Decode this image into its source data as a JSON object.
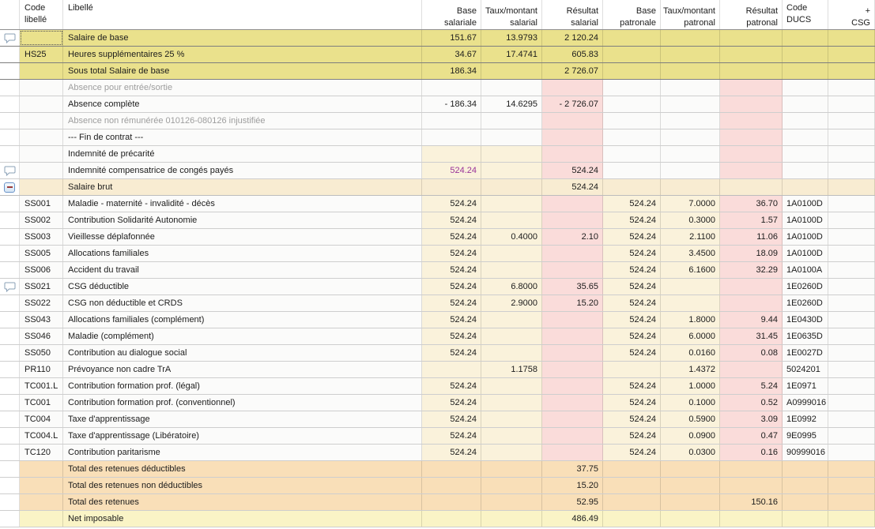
{
  "table": {
    "columns": [
      {
        "key": "icon",
        "lines": [],
        "align": "left"
      },
      {
        "key": "code",
        "lines": [
          "Code",
          "libellé"
        ],
        "align": "left"
      },
      {
        "key": "libelle",
        "lines": [
          "Libellé"
        ],
        "align": "left"
      },
      {
        "key": "base_sal",
        "lines": [
          "Base",
          "salariale"
        ],
        "align": "right"
      },
      {
        "key": "taux_sal",
        "lines": [
          "Taux/montant",
          "salarial"
        ],
        "align": "right"
      },
      {
        "key": "res_sal",
        "lines": [
          "Résultat",
          "salarial"
        ],
        "align": "right"
      },
      {
        "key": "base_pat",
        "lines": [
          "Base",
          "patronale"
        ],
        "align": "right"
      },
      {
        "key": "taux_pat",
        "lines": [
          "Taux/montant",
          "patronal"
        ],
        "align": "right"
      },
      {
        "key": "res_pat",
        "lines": [
          "Résultat",
          "patronal"
        ],
        "align": "right"
      },
      {
        "key": "ducs",
        "lines": [
          "Code",
          "DUCS"
        ],
        "align": "left"
      },
      {
        "key": "csg",
        "lines": [
          "+",
          "CSG"
        ],
        "align": "right"
      }
    ],
    "rows": [
      {
        "style": "yellow",
        "icon": "comment",
        "selected": "code",
        "cells": {
          "code": "",
          "libelle": "Salaire de base",
          "base_sal": "151.67",
          "taux_sal": "13.9793",
          "res_sal": "2 120.24"
        }
      },
      {
        "style": "yellow",
        "cells": {
          "code": "HS25",
          "libelle": "Heures supplémentaires 25 %",
          "base_sal": "34.67",
          "taux_sal": "17.4741",
          "res_sal": "605.83"
        }
      },
      {
        "style": "yellow",
        "cells": {
          "libelle": "Sous total Salaire de base",
          "base_sal": "186.34",
          "res_sal": "2 726.07"
        }
      },
      {
        "style": "muted",
        "cells": {
          "libelle": "Absence pour entrée/sortie"
        }
      },
      {
        "style": "normal",
        "cells": {
          "libelle": "Absence complète",
          "base_sal": "- 186.34",
          "taux_sal": "14.6295",
          "res_sal": "- 2 726.07"
        }
      },
      {
        "style": "muted",
        "cells": {
          "libelle": "Absence non rémunérée 010126-080126 injustifiée"
        }
      },
      {
        "style": "normal",
        "cells": {
          "libelle": "--- Fin de contrat ---"
        }
      },
      {
        "style": "input",
        "cells": {
          "libelle": "Indemnité de précarité"
        }
      },
      {
        "style": "input",
        "icon": "comment",
        "purple": "base_sal",
        "cells": {
          "libelle": "Indemnité compensatrice de congés payés",
          "base_sal": "524.24",
          "res_sal": "524.24"
        }
      },
      {
        "style": "brut",
        "icon": "minus",
        "cells": {
          "libelle": "Salaire brut",
          "res_sal": "524.24"
        }
      },
      {
        "style": "contrib",
        "cells": {
          "code": "SS001",
          "libelle": "Maladie - maternité - invalidité - décès",
          "base_sal": "524.24",
          "base_pat": "524.24",
          "taux_pat": "7.0000",
          "res_pat": "36.70",
          "ducs": "1A0100D"
        }
      },
      {
        "style": "contrib",
        "cells": {
          "code": "SS002",
          "libelle": "Contribution Solidarité Autonomie",
          "base_sal": "524.24",
          "base_pat": "524.24",
          "taux_pat": "0.3000",
          "res_pat": "1.57",
          "ducs": "1A0100D"
        }
      },
      {
        "style": "contrib",
        "cells": {
          "code": "SS003",
          "libelle": "Vieillesse déplafonnée",
          "base_sal": "524.24",
          "taux_sal": "0.4000",
          "res_sal": "2.10",
          "base_pat": "524.24",
          "taux_pat": "2.1100",
          "res_pat": "11.06",
          "ducs": "1A0100D"
        }
      },
      {
        "style": "contrib",
        "cells": {
          "code": "SS005",
          "libelle": "Allocations familiales",
          "base_sal": "524.24",
          "base_pat": "524.24",
          "taux_pat": "3.4500",
          "res_pat": "18.09",
          "ducs": "1A0100D"
        }
      },
      {
        "style": "contrib",
        "cells": {
          "code": "SS006",
          "libelle": "Accident du travail",
          "base_sal": "524.24",
          "base_pat": "524.24",
          "taux_pat": "6.1600",
          "res_pat": "32.29",
          "ducs": "1A0100A"
        }
      },
      {
        "style": "contrib",
        "icon": "comment",
        "cells": {
          "code": "SS021",
          "libelle": "CSG déductible",
          "base_sal": "524.24",
          "taux_sal": "6.8000",
          "res_sal": "35.65",
          "base_pat": "524.24",
          "ducs": "1E0260D"
        }
      },
      {
        "style": "contrib",
        "cells": {
          "code": "SS022",
          "libelle": "CSG non déductible et CRDS",
          "base_sal": "524.24",
          "taux_sal": "2.9000",
          "res_sal": "15.20",
          "base_pat": "524.24",
          "ducs": "1E0260D"
        }
      },
      {
        "style": "contrib",
        "cells": {
          "code": "SS043",
          "libelle": "Allocations familiales (complément)",
          "base_sal": "524.24",
          "base_pat": "524.24",
          "taux_pat": "1.8000",
          "res_pat": "9.44",
          "ducs": "1E0430D"
        }
      },
      {
        "style": "contrib",
        "cells": {
          "code": "SS046",
          "libelle": "Maladie (complément)",
          "base_sal": "524.24",
          "base_pat": "524.24",
          "taux_pat": "6.0000",
          "res_pat": "31.45",
          "ducs": "1E0635D"
        }
      },
      {
        "style": "contrib",
        "cells": {
          "code": "SS050",
          "libelle": "Contribution au dialogue social",
          "base_sal": "524.24",
          "base_pat": "524.24",
          "taux_pat": "0.0160",
          "res_pat": "0.08",
          "ducs": "1E0027D"
        }
      },
      {
        "style": "contrib",
        "cells": {
          "code": "PR110",
          "libelle": "Prévoyance non cadre TrA",
          "taux_sal": "1.1758",
          "taux_pat": "1.4372",
          "ducs": "5024201"
        }
      },
      {
        "style": "contrib",
        "cells": {
          "code": "TC001.L",
          "libelle": "Contribution formation prof. (légal)",
          "base_sal": "524.24",
          "base_pat": "524.24",
          "taux_pat": "1.0000",
          "res_pat": "5.24",
          "ducs": "1E0971"
        }
      },
      {
        "style": "contrib",
        "cells": {
          "code": "TC001",
          "libelle": "Contribution formation prof. (conventionnel)",
          "base_sal": "524.24",
          "base_pat": "524.24",
          "taux_pat": "0.1000",
          "res_pat": "0.52",
          "ducs": "A0999016"
        }
      },
      {
        "style": "contrib",
        "cells": {
          "code": "TC004",
          "libelle": "Taxe d'apprentissage",
          "base_sal": "524.24",
          "base_pat": "524.24",
          "taux_pat": "0.5900",
          "res_pat": "3.09",
          "ducs": "1E0992"
        }
      },
      {
        "style": "contrib",
        "cells": {
          "code": "TC004.L",
          "libelle": "Taxe d'apprentissage (Libératoire)",
          "base_sal": "524.24",
          "base_pat": "524.24",
          "taux_pat": "0.0900",
          "res_pat": "0.47",
          "ducs": "9E0995"
        }
      },
      {
        "style": "contrib",
        "cells": {
          "code": "TC120",
          "libelle": "Contribution paritarisme",
          "base_sal": "524.24",
          "base_pat": "524.24",
          "taux_pat": "0.0300",
          "res_pat": "0.16",
          "ducs": "90999016"
        }
      },
      {
        "style": "total",
        "cells": {
          "libelle": "Total des retenues déductibles",
          "res_sal": "37.75"
        }
      },
      {
        "style": "total",
        "cells": {
          "libelle": "Total des retenues non déductibles",
          "res_sal": "15.20"
        }
      },
      {
        "style": "total",
        "cells": {
          "libelle": "Total des retenues",
          "res_sal": "52.95",
          "res_pat": "150.16"
        }
      },
      {
        "style": "net",
        "cells": {
          "libelle": "Net imposable",
          "res_sal": "486.49"
        }
      }
    ]
  },
  "colors": {
    "highlight_yellow": "#eae18c",
    "editable_cream": "#faf2db",
    "result_pink": "#fadcda",
    "gross_row": "#f8ecd2",
    "total_row": "#f9dfb8",
    "net_row": "#faf4c6",
    "muted_text": "#9d9d9d",
    "purple_value": "#993399"
  },
  "icons": {
    "comment": "comment-bubble-icon",
    "minus": "collapse-minus-button"
  }
}
